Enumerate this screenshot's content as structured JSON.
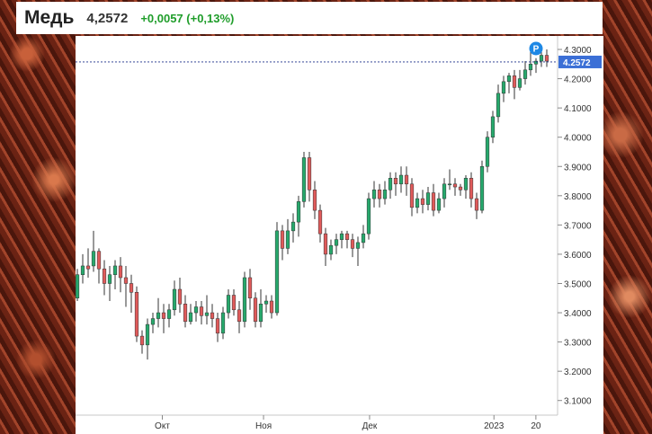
{
  "header": {
    "title": "Медь",
    "price": "4,2572",
    "change": "+0,0057 (+0,13%)"
  },
  "colors": {
    "up": "#26a96c",
    "down": "#e05a5a",
    "last_price_bg": "#3b6fd6",
    "marker": "#1e88e5"
  },
  "marker": {
    "label": "P"
  },
  "chart_data": {
    "type": "candlestick",
    "y_ticks": [
      "4.3000",
      "4.2000",
      "4.1000",
      "4.0000",
      "3.9000",
      "3.8000",
      "3.7000",
      "3.6000",
      "3.5000",
      "3.4000",
      "3.3000",
      "3.2000",
      "3.1000"
    ],
    "x_ticks": [
      "Окт",
      "Ноя",
      "Дек",
      "2023",
      "20"
    ],
    "ylim": [
      3.05,
      4.34
    ],
    "last_price": "4.2572",
    "candles": [
      [
        3.45,
        3.53,
        3.44,
        3.55
      ],
      [
        3.53,
        3.56,
        3.5,
        3.6
      ],
      [
        3.56,
        3.55,
        3.52,
        3.62
      ],
      [
        3.56,
        3.61,
        3.54,
        3.68
      ],
      [
        3.61,
        3.55,
        3.5,
        3.62
      ],
      [
        3.55,
        3.5,
        3.46,
        3.58
      ],
      [
        3.5,
        3.53,
        3.44,
        3.56
      ],
      [
        3.53,
        3.56,
        3.48,
        3.58
      ],
      [
        3.56,
        3.52,
        3.47,
        3.59
      ],
      [
        3.52,
        3.5,
        3.42,
        3.56
      ],
      [
        3.5,
        3.47,
        3.4,
        3.53
      ],
      [
        3.47,
        3.32,
        3.3,
        3.49
      ],
      [
        3.32,
        3.29,
        3.26,
        3.34
      ],
      [
        3.29,
        3.36,
        3.24,
        3.38
      ],
      [
        3.36,
        3.38,
        3.33,
        3.4
      ],
      [
        3.38,
        3.4,
        3.35,
        3.45
      ],
      [
        3.4,
        3.38,
        3.33,
        3.43
      ],
      [
        3.38,
        3.41,
        3.35,
        3.43
      ],
      [
        3.41,
        3.48,
        3.39,
        3.51
      ],
      [
        3.48,
        3.43,
        3.4,
        3.52
      ],
      [
        3.43,
        3.37,
        3.35,
        3.46
      ],
      [
        3.37,
        3.4,
        3.36,
        3.43
      ],
      [
        3.4,
        3.42,
        3.37,
        3.44
      ],
      [
        3.42,
        3.39,
        3.36,
        3.44
      ],
      [
        3.39,
        3.4,
        3.36,
        3.46
      ],
      [
        3.4,
        3.38,
        3.35,
        3.43
      ],
      [
        3.38,
        3.33,
        3.3,
        3.4
      ],
      [
        3.33,
        3.4,
        3.31,
        3.42
      ],
      [
        3.4,
        3.46,
        3.38,
        3.48
      ],
      [
        3.46,
        3.41,
        3.39,
        3.48
      ],
      [
        3.41,
        3.37,
        3.33,
        3.44
      ],
      [
        3.37,
        3.52,
        3.35,
        3.54
      ],
      [
        3.52,
        3.45,
        3.41,
        3.55
      ],
      [
        3.45,
        3.37,
        3.35,
        3.47
      ],
      [
        3.37,
        3.43,
        3.35,
        3.48
      ],
      [
        3.43,
        3.44,
        3.4,
        3.46
      ],
      [
        3.44,
        3.4,
        3.38,
        3.46
      ],
      [
        3.4,
        3.68,
        3.39,
        3.71
      ],
      [
        3.68,
        3.62,
        3.58,
        3.7
      ],
      [
        3.62,
        3.68,
        3.6,
        3.72
      ],
      [
        3.68,
        3.71,
        3.64,
        3.74
      ],
      [
        3.71,
        3.78,
        3.66,
        3.8
      ],
      [
        3.78,
        3.93,
        3.76,
        3.95
      ],
      [
        3.93,
        3.82,
        3.78,
        3.95
      ],
      [
        3.82,
        3.75,
        3.72,
        3.85
      ],
      [
        3.75,
        3.67,
        3.64,
        3.77
      ],
      [
        3.67,
        3.6,
        3.56,
        3.69
      ],
      [
        3.6,
        3.63,
        3.58,
        3.65
      ],
      [
        3.63,
        3.65,
        3.6,
        3.67
      ],
      [
        3.65,
        3.67,
        3.62,
        3.68
      ],
      [
        3.67,
        3.65,
        3.62,
        3.68
      ],
      [
        3.65,
        3.62,
        3.59,
        3.67
      ],
      [
        3.62,
        3.64,
        3.56,
        3.66
      ],
      [
        3.64,
        3.67,
        3.62,
        3.7
      ],
      [
        3.67,
        3.79,
        3.65,
        3.81
      ],
      [
        3.79,
        3.82,
        3.76,
        3.85
      ],
      [
        3.82,
        3.79,
        3.76,
        3.84
      ],
      [
        3.79,
        3.82,
        3.77,
        3.85
      ],
      [
        3.82,
        3.86,
        3.79,
        3.88
      ],
      [
        3.86,
        3.84,
        3.8,
        3.88
      ],
      [
        3.84,
        3.87,
        3.81,
        3.9
      ],
      [
        3.87,
        3.84,
        3.8,
        3.9
      ],
      [
        3.84,
        3.76,
        3.73,
        3.86
      ],
      [
        3.76,
        3.79,
        3.74,
        3.81
      ],
      [
        3.79,
        3.77,
        3.74,
        3.82
      ],
      [
        3.77,
        3.81,
        3.75,
        3.83
      ],
      [
        3.81,
        3.75,
        3.73,
        3.84
      ],
      [
        3.75,
        3.79,
        3.74,
        3.81
      ],
      [
        3.79,
        3.84,
        3.76,
        3.86
      ],
      [
        3.84,
        3.84,
        3.82,
        3.89
      ],
      [
        3.84,
        3.83,
        3.8,
        3.86
      ],
      [
        3.83,
        3.82,
        3.8,
        3.84
      ],
      [
        3.82,
        3.86,
        3.79,
        3.87
      ],
      [
        3.86,
        3.79,
        3.76,
        3.88
      ],
      [
        3.79,
        3.75,
        3.72,
        3.81
      ],
      [
        3.75,
        3.9,
        3.74,
        3.92
      ],
      [
        3.9,
        4.0,
        3.88,
        4.02
      ],
      [
        4.0,
        4.07,
        3.98,
        4.09
      ],
      [
        4.07,
        4.15,
        4.05,
        4.18
      ],
      [
        4.15,
        4.19,
        4.12,
        4.21
      ],
      [
        4.19,
        4.21,
        4.15,
        4.22
      ],
      [
        4.21,
        4.17,
        4.13,
        4.23
      ],
      [
        4.17,
        4.2,
        4.16,
        4.23
      ],
      [
        4.2,
        4.23,
        4.18,
        4.26
      ],
      [
        4.23,
        4.25,
        4.21,
        4.3
      ],
      [
        4.25,
        4.26,
        4.22,
        4.27
      ],
      [
        4.26,
        4.28,
        4.24,
        4.31
      ],
      [
        4.28,
        4.26,
        4.24,
        4.3
      ]
    ]
  }
}
